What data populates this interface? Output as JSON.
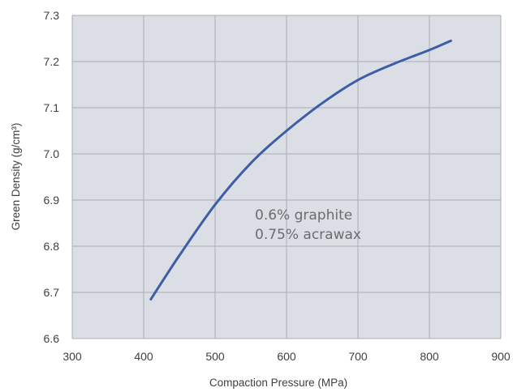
{
  "chart_data": {
    "type": "line",
    "title": "",
    "xlabel": "Compaction Pressure (MPa)",
    "ylabel": "Green Density (g/cm³)",
    "xlim": [
      300,
      900
    ],
    "ylim": [
      6.6,
      7.3
    ],
    "x_ticks": [
      "300",
      "400",
      "500",
      "600",
      "700",
      "800",
      "900"
    ],
    "y_ticks": [
      "6.6",
      "6.7",
      "6.8",
      "6.9",
      "7.0",
      "7.1",
      "7.2",
      "7.3"
    ],
    "grid": true,
    "legend": "none",
    "plot_background": "#dcdee6",
    "line_color": "#3b5ea6",
    "annotations": [
      "0.6% graphite",
      "0.75% acrawax"
    ],
    "series": [
      {
        "x": [
          410,
          450,
          500,
          550,
          600,
          650,
          700,
          750,
          800,
          830
        ],
        "y": [
          6.685,
          6.78,
          6.89,
          6.98,
          7.05,
          7.11,
          7.16,
          7.195,
          7.225,
          7.245
        ]
      }
    ]
  }
}
